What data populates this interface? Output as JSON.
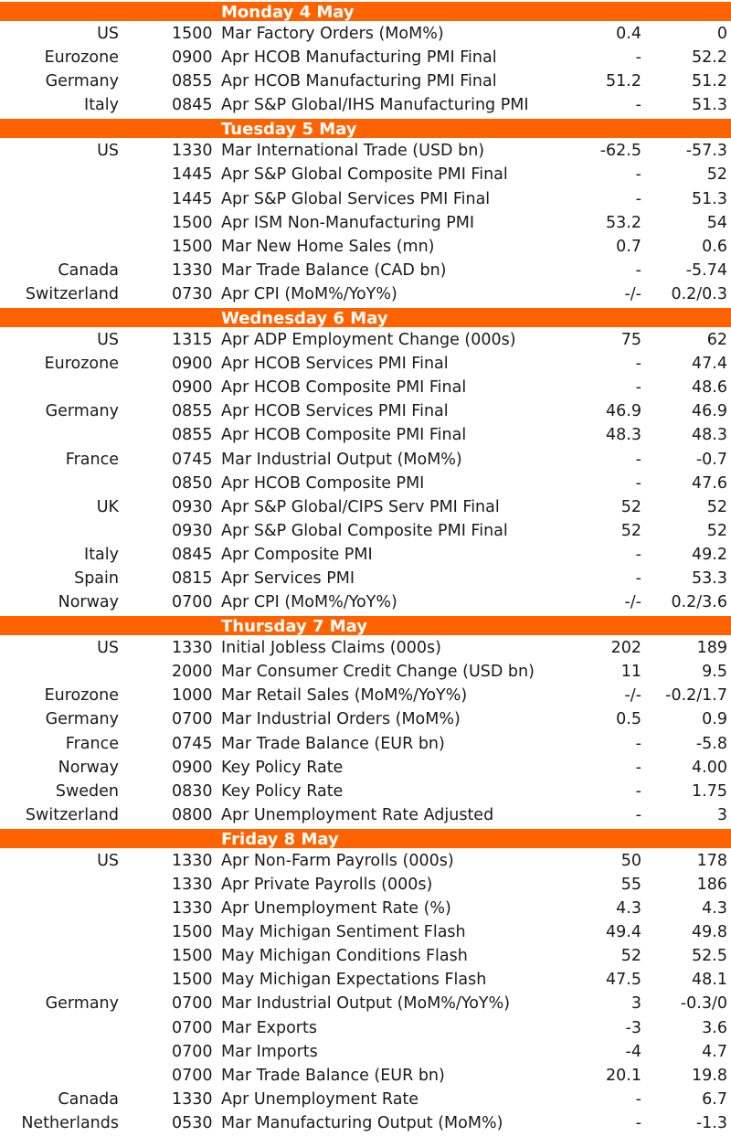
{
  "days": [
    {
      "title": "Monday 4 May",
      "rows": [
        {
          "country": "US",
          "time": "1500",
          "event": "Mar Factory Orders (MoM%)",
          "forecast": "0.4",
          "previous": "0"
        },
        {
          "country": "Eurozone",
          "time": "0900",
          "event": "Apr HCOB Manufacturing PMI Final",
          "forecast": "-",
          "previous": "52.2"
        },
        {
          "country": "Germany",
          "time": "0855",
          "event": "Apr HCOB Manufacturing PMI Final",
          "forecast": "51.2",
          "previous": "51.2"
        },
        {
          "country": "Italy",
          "time": "0845",
          "event": "Apr S&P Global/IHS Manufacturing PMI",
          "forecast": "-",
          "previous": "51.3"
        }
      ]
    },
    {
      "title": "Tuesday 5 May",
      "rows": [
        {
          "country": "US",
          "time": "1330",
          "event": "Mar International Trade (USD bn)",
          "forecast": "-62.5",
          "previous": "-57.3"
        },
        {
          "country": "",
          "time": "1445",
          "event": "Apr S&P Global Composite PMI Final",
          "forecast": "-",
          "previous": "52"
        },
        {
          "country": "",
          "time": "1445",
          "event": "Apr S&P Global Services PMI Final",
          "forecast": "-",
          "previous": "51.3"
        },
        {
          "country": "",
          "time": "1500",
          "event": "Apr ISM Non-Manufacturing PMI",
          "forecast": "53.2",
          "previous": "54"
        },
        {
          "country": "",
          "time": "1500",
          "event": "Mar New Home Sales (mn)",
          "forecast": "0.7",
          "previous": "0.6"
        },
        {
          "country": "Canada",
          "time": "1330",
          "event": "Mar Trade Balance (CAD bn)",
          "forecast": "-",
          "previous": "-5.74"
        },
        {
          "country": "Switzerland",
          "time": "0730",
          "event": "Apr CPI (MoM%/YoY%)",
          "forecast": "-/-",
          "previous": "0.2/0.3"
        }
      ]
    },
    {
      "title": "Wednesday 6 May",
      "rows": [
        {
          "country": "US",
          "time": "1315",
          "event": "Apr ADP Employment Change (000s)",
          "forecast": "75",
          "previous": "62"
        },
        {
          "country": "Eurozone",
          "time": "0900",
          "event": "Apr HCOB Services PMI Final",
          "forecast": "-",
          "previous": "47.4"
        },
        {
          "country": "",
          "time": "0900",
          "event": "Apr HCOB Composite PMI Final",
          "forecast": "-",
          "previous": "48.6"
        },
        {
          "country": "Germany",
          "time": "0855",
          "event": "Apr HCOB Services PMI Final",
          "forecast": "46.9",
          "previous": "46.9"
        },
        {
          "country": "",
          "time": "0855",
          "event": "Apr HCOB Composite PMI Final",
          "forecast": "48.3",
          "previous": "48.3"
        },
        {
          "country": "France",
          "time": "0745",
          "event": "Mar Industrial Output (MoM%)",
          "forecast": "-",
          "previous": "-0.7"
        },
        {
          "country": "",
          "time": "0850",
          "event": "Apr HCOB Composite PMI",
          "forecast": "-",
          "previous": "47.6"
        },
        {
          "country": "UK",
          "time": "0930",
          "event": "Apr S&P Global/CIPS Serv PMI Final",
          "forecast": "52",
          "previous": "52"
        },
        {
          "country": "",
          "time": "0930",
          "event": "Apr S&P Global Composite PMI Final",
          "forecast": "52",
          "previous": "52"
        },
        {
          "country": "Italy",
          "time": "0845",
          "event": "Apr Composite PMI",
          "forecast": "-",
          "previous": "49.2"
        },
        {
          "country": "Spain",
          "time": "0815",
          "event": "Apr Services PMI",
          "forecast": "-",
          "previous": "53.3"
        },
        {
          "country": "Norway",
          "time": "0700",
          "event": "Apr CPI (MoM%/YoY%)",
          "forecast": "-/-",
          "previous": "0.2/3.6"
        }
      ]
    },
    {
      "title": "Thursday 7 May",
      "rows": [
        {
          "country": "US",
          "time": "1330",
          "event": "Initial Jobless Claims (000s)",
          "forecast": "202",
          "previous": "189"
        },
        {
          "country": "",
          "time": "2000",
          "event": "Mar Consumer Credit Change (USD bn)",
          "forecast": "11",
          "previous": "9.5"
        },
        {
          "country": "Eurozone",
          "time": "1000",
          "event": "Mar Retail Sales (MoM%/YoY%)",
          "forecast": "-/-",
          "previous": "-0.2/1.7"
        },
        {
          "country": "Germany",
          "time": "0700",
          "event": "Mar Industrial Orders (MoM%)",
          "forecast": "0.5",
          "previous": "0.9"
        },
        {
          "country": "France",
          "time": "0745",
          "event": "Mar Trade Balance (EUR bn)",
          "forecast": "-",
          "previous": "-5.8"
        },
        {
          "country": "Norway",
          "time": "0900",
          "event": "Key Policy Rate",
          "forecast": "-",
          "previous": "4.00"
        },
        {
          "country": "Sweden",
          "time": "0830",
          "event": "Key Policy Rate",
          "forecast": "-",
          "previous": "1.75"
        },
        {
          "country": "Switzerland",
          "time": "0800",
          "event": "Apr Unemployment Rate Adjusted",
          "forecast": "-",
          "previous": "3"
        }
      ]
    },
    {
      "title": "Friday 8 May",
      "rows": [
        {
          "country": "US",
          "time": "1330",
          "event": "Apr Non-Farm Payrolls (000s)",
          "forecast": "50",
          "previous": "178"
        },
        {
          "country": "",
          "time": "1330",
          "event": "Apr Private Payrolls (000s)",
          "forecast": "55",
          "previous": "186"
        },
        {
          "country": "",
          "time": "1330",
          "event": "Apr Unemployment Rate (%)",
          "forecast": "4.3",
          "previous": "4.3"
        },
        {
          "country": "",
          "time": "1500",
          "event": "May Michigan Sentiment Flash",
          "forecast": "49.4",
          "previous": "49.8"
        },
        {
          "country": "",
          "time": "1500",
          "event": "May Michigan Conditions Flash",
          "forecast": "52",
          "previous": "52.5"
        },
        {
          "country": "",
          "time": "1500",
          "event": "May Michigan Expectations Flash",
          "forecast": "47.5",
          "previous": "48.1"
        },
        {
          "country": "Germany",
          "time": "0700",
          "event": "Mar Industrial Output (MoM%/YoY%)",
          "forecast": "3",
          "previous": "-0.3/0"
        },
        {
          "country": "",
          "time": "0700",
          "event": "Mar Exports",
          "forecast": "-3",
          "previous": "3.6"
        },
        {
          "country": "",
          "time": "0700",
          "event": "Mar Imports",
          "forecast": "-4",
          "previous": "4.7"
        },
        {
          "country": "",
          "time": "0700",
          "event": "Mar Trade Balance (EUR bn)",
          "forecast": "20.1",
          "previous": "19.8"
        },
        {
          "country": "Canada",
          "time": "1330",
          "event": "Apr Unemployment Rate",
          "forecast": "-",
          "previous": "6.7"
        },
        {
          "country": "Netherlands",
          "time": "0530",
          "event": "Mar Manufacturing Output (MoM%)",
          "forecast": "-",
          "previous": "-1.3"
        }
      ]
    }
  ]
}
